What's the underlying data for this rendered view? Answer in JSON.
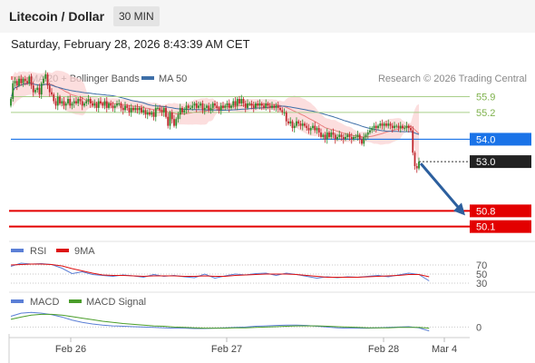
{
  "header": {
    "title": "Litecoin / Dollar",
    "interval": "30 MIN",
    "datetime": "Saturday, February 28, 2026 8:43:39 AM CET"
  },
  "colors": {
    "candle_up": "#2a8a2a",
    "candle_down": "#c0262c",
    "ma20": "#ea7f7f",
    "bollinger_fill": "#fbd3d3",
    "ma50": "#3e6fa8",
    "resistance": "#a9cf8a",
    "pivot": "#1a73e8",
    "support": "#e30000",
    "last_price": "#222222",
    "arrow": "#2c5f9e",
    "rsi": "#5b7fd6",
    "rsi_ma": "#dd1111",
    "macd": "#5b7fd6",
    "macd_signal": "#4a9d2a"
  },
  "chart_data": [
    {
      "type": "candlestick",
      "legend": [
        "MA 20 + Bollinger Bands",
        "MA 50"
      ],
      "legend_position": "top-left",
      "credit": "Research © 2026 Trading Central",
      "x_ticks": [
        "Feb 26",
        "Feb 27",
        "Feb 28",
        "Mar 4"
      ],
      "ylim": [
        49.6,
        57.3
      ],
      "levels": [
        {
          "label": "55.9",
          "value": 55.9,
          "kind": "resistance"
        },
        {
          "label": "55.2",
          "value": 55.2,
          "kind": "resistance"
        },
        {
          "label": "54.0",
          "value": 54.0,
          "kind": "pivot"
        },
        {
          "label": "53.0",
          "value": 53.0,
          "kind": "last"
        },
        {
          "label": "50.8",
          "value": 50.8,
          "kind": "support"
        },
        {
          "label": "50.1",
          "value": 50.1,
          "kind": "support"
        }
      ],
      "close": [
        55.8,
        56.5,
        56.6,
        56.4,
        56.7,
        56.5,
        56.7,
        56.6,
        56.5,
        56.8,
        56.4,
        56.1,
        56.2,
        56.3,
        56.0,
        56.5,
        56.7,
        56.9,
        56.4,
        56.1,
        56.0,
        55.7,
        55.5,
        55.9,
        55.6,
        55.7,
        55.5,
        55.6,
        55.8,
        55.5,
        55.6,
        55.7,
        55.6,
        55.8,
        55.7,
        55.5,
        55.6,
        55.7,
        55.8,
        55.6,
        55.5,
        55.6,
        55.4,
        55.7,
        55.6,
        55.5,
        55.7,
        55.4,
        55.6,
        55.5,
        55.4,
        55.5,
        55.6,
        55.6,
        55.4,
        55.3,
        55.5,
        55.4,
        55.2,
        55.4,
        55.3,
        55.4,
        55.3,
        55.4,
        55.2,
        55.3,
        55.1,
        55.2,
        55.1,
        55.2,
        55.0,
        55.4,
        55.4,
        55.3,
        55.2,
        55.4,
        55.0,
        54.6,
        55.2,
        54.9,
        54.6,
        54.9,
        55.1,
        55.4,
        55.2,
        55.3,
        55.5,
        55.4,
        55.4,
        55.5,
        55.6,
        55.4,
        55.5,
        55.6,
        55.3,
        55.4,
        55.5,
        55.3,
        55.4,
        55.6,
        55.5,
        55.4,
        55.3,
        55.5,
        55.4,
        55.5,
        55.6,
        55.4,
        55.5,
        55.7,
        55.5,
        55.8,
        55.6,
        55.8,
        55.6,
        55.4,
        55.6,
        55.6,
        55.5,
        55.4,
        55.6,
        55.5,
        55.6,
        55.5,
        55.4,
        55.6,
        55.5,
        55.4,
        55.5,
        55.4,
        55.5,
        55.4,
        55.3,
        55.2,
        55.2,
        54.8,
        54.7,
        54.8,
        54.5,
        54.6,
        54.8,
        54.7,
        54.6,
        54.7,
        54.6,
        54.5,
        54.4,
        54.5,
        54.6,
        54.4,
        54.5,
        54.3,
        54.1,
        54.2,
        54.0,
        54.3,
        54.1,
        54.3,
        54.2,
        54.0,
        54.1,
        54.2,
        54.1,
        54.0,
        54.1,
        54.2,
        54.1,
        54.0,
        54.1,
        54.1,
        54.2,
        54.0,
        53.8,
        54.1,
        54.2,
        54.3,
        54.4,
        54.5,
        54.6,
        54.5,
        54.6,
        54.7,
        54.6,
        54.7,
        54.6,
        54.7,
        54.6,
        54.5,
        54.6,
        54.6,
        54.5,
        54.6,
        54.5,
        54.5,
        54.6,
        54.5,
        54.4,
        53.4,
        52.8,
        52.7,
        53.0
      ]
    },
    {
      "type": "line",
      "legend": [
        "RSI",
        "9MA"
      ],
      "legend_position": "top-left",
      "ylim": [
        26,
        78
      ],
      "y_ticks": [
        {
          "label": "70",
          "value": 70
        },
        {
          "label": "50",
          "value": 50
        },
        {
          "label": "30",
          "value": 30
        }
      ],
      "x": [
        0,
        5,
        10,
        15,
        20,
        25,
        30,
        35,
        40,
        45,
        50,
        55,
        60,
        65,
        70,
        75,
        80,
        85,
        90,
        95,
        100,
        105,
        110,
        115,
        120,
        125,
        130,
        135,
        140,
        145,
        150,
        155,
        160,
        165,
        170,
        175,
        180,
        185,
        190,
        195,
        200,
        205
      ],
      "series": [
        {
          "name": "RSI",
          "values": [
            67,
            74,
            72,
            73,
            71,
            63,
            51,
            55,
            49,
            47,
            45,
            48,
            46,
            43,
            49,
            45,
            47,
            44,
            42,
            50,
            41,
            46,
            50,
            48,
            51,
            52,
            47,
            52,
            49,
            45,
            41,
            44,
            42,
            44,
            43,
            45,
            47,
            44,
            48,
            52,
            49,
            35
          ]
        },
        {
          "name": "9MA",
          "values": [
            70,
            71,
            72,
            72,
            71,
            68,
            62,
            57,
            52,
            48,
            47,
            47,
            46,
            45,
            46,
            46,
            46,
            45,
            45,
            46,
            45,
            45,
            47,
            48,
            49,
            50,
            50,
            50,
            49,
            47,
            45,
            43,
            43,
            43,
            43,
            44,
            45,
            46,
            47,
            49,
            49,
            44
          ]
        }
      ]
    },
    {
      "type": "line",
      "legend": [
        "MACD",
        "MACD Signal"
      ],
      "legend_position": "top-left",
      "ylim": [
        -0.18,
        0.48
      ],
      "y_ticks": [
        {
          "label": "0",
          "value": 0
        }
      ],
      "x": [
        0,
        5,
        10,
        15,
        20,
        25,
        30,
        35,
        40,
        45,
        50,
        55,
        60,
        65,
        70,
        75,
        80,
        85,
        90,
        95,
        100,
        105,
        110,
        115,
        120,
        125,
        130,
        135,
        140,
        145,
        150,
        155,
        160,
        165,
        170,
        175,
        180,
        185,
        190,
        195,
        200,
        205
      ],
      "series": [
        {
          "name": "MACD",
          "values": [
            0.28,
            0.36,
            0.38,
            0.36,
            0.32,
            0.26,
            0.18,
            0.12,
            0.08,
            0.05,
            0.03,
            0.02,
            0.01,
            0.0,
            -0.01,
            -0.02,
            -0.03,
            -0.03,
            -0.04,
            -0.04,
            -0.03,
            -0.02,
            -0.01,
            0.0,
            0.02,
            0.03,
            0.04,
            0.05,
            0.05,
            0.04,
            0.02,
            0.0,
            -0.02,
            -0.03,
            -0.03,
            -0.03,
            -0.02,
            -0.01,
            0.0,
            0.01,
            -0.02,
            -0.1
          ]
        },
        {
          "name": "MACD Signal",
          "values": [
            0.2,
            0.26,
            0.31,
            0.33,
            0.33,
            0.31,
            0.27,
            0.23,
            0.19,
            0.15,
            0.12,
            0.09,
            0.07,
            0.05,
            0.03,
            0.02,
            0.0,
            -0.01,
            -0.02,
            -0.03,
            -0.03,
            -0.03,
            -0.02,
            -0.02,
            -0.01,
            0.0,
            0.01,
            0.02,
            0.03,
            0.03,
            0.03,
            0.02,
            0.01,
            0.0,
            -0.01,
            -0.02,
            -0.02,
            -0.02,
            -0.01,
            -0.01,
            -0.01,
            -0.03
          ]
        }
      ]
    }
  ]
}
